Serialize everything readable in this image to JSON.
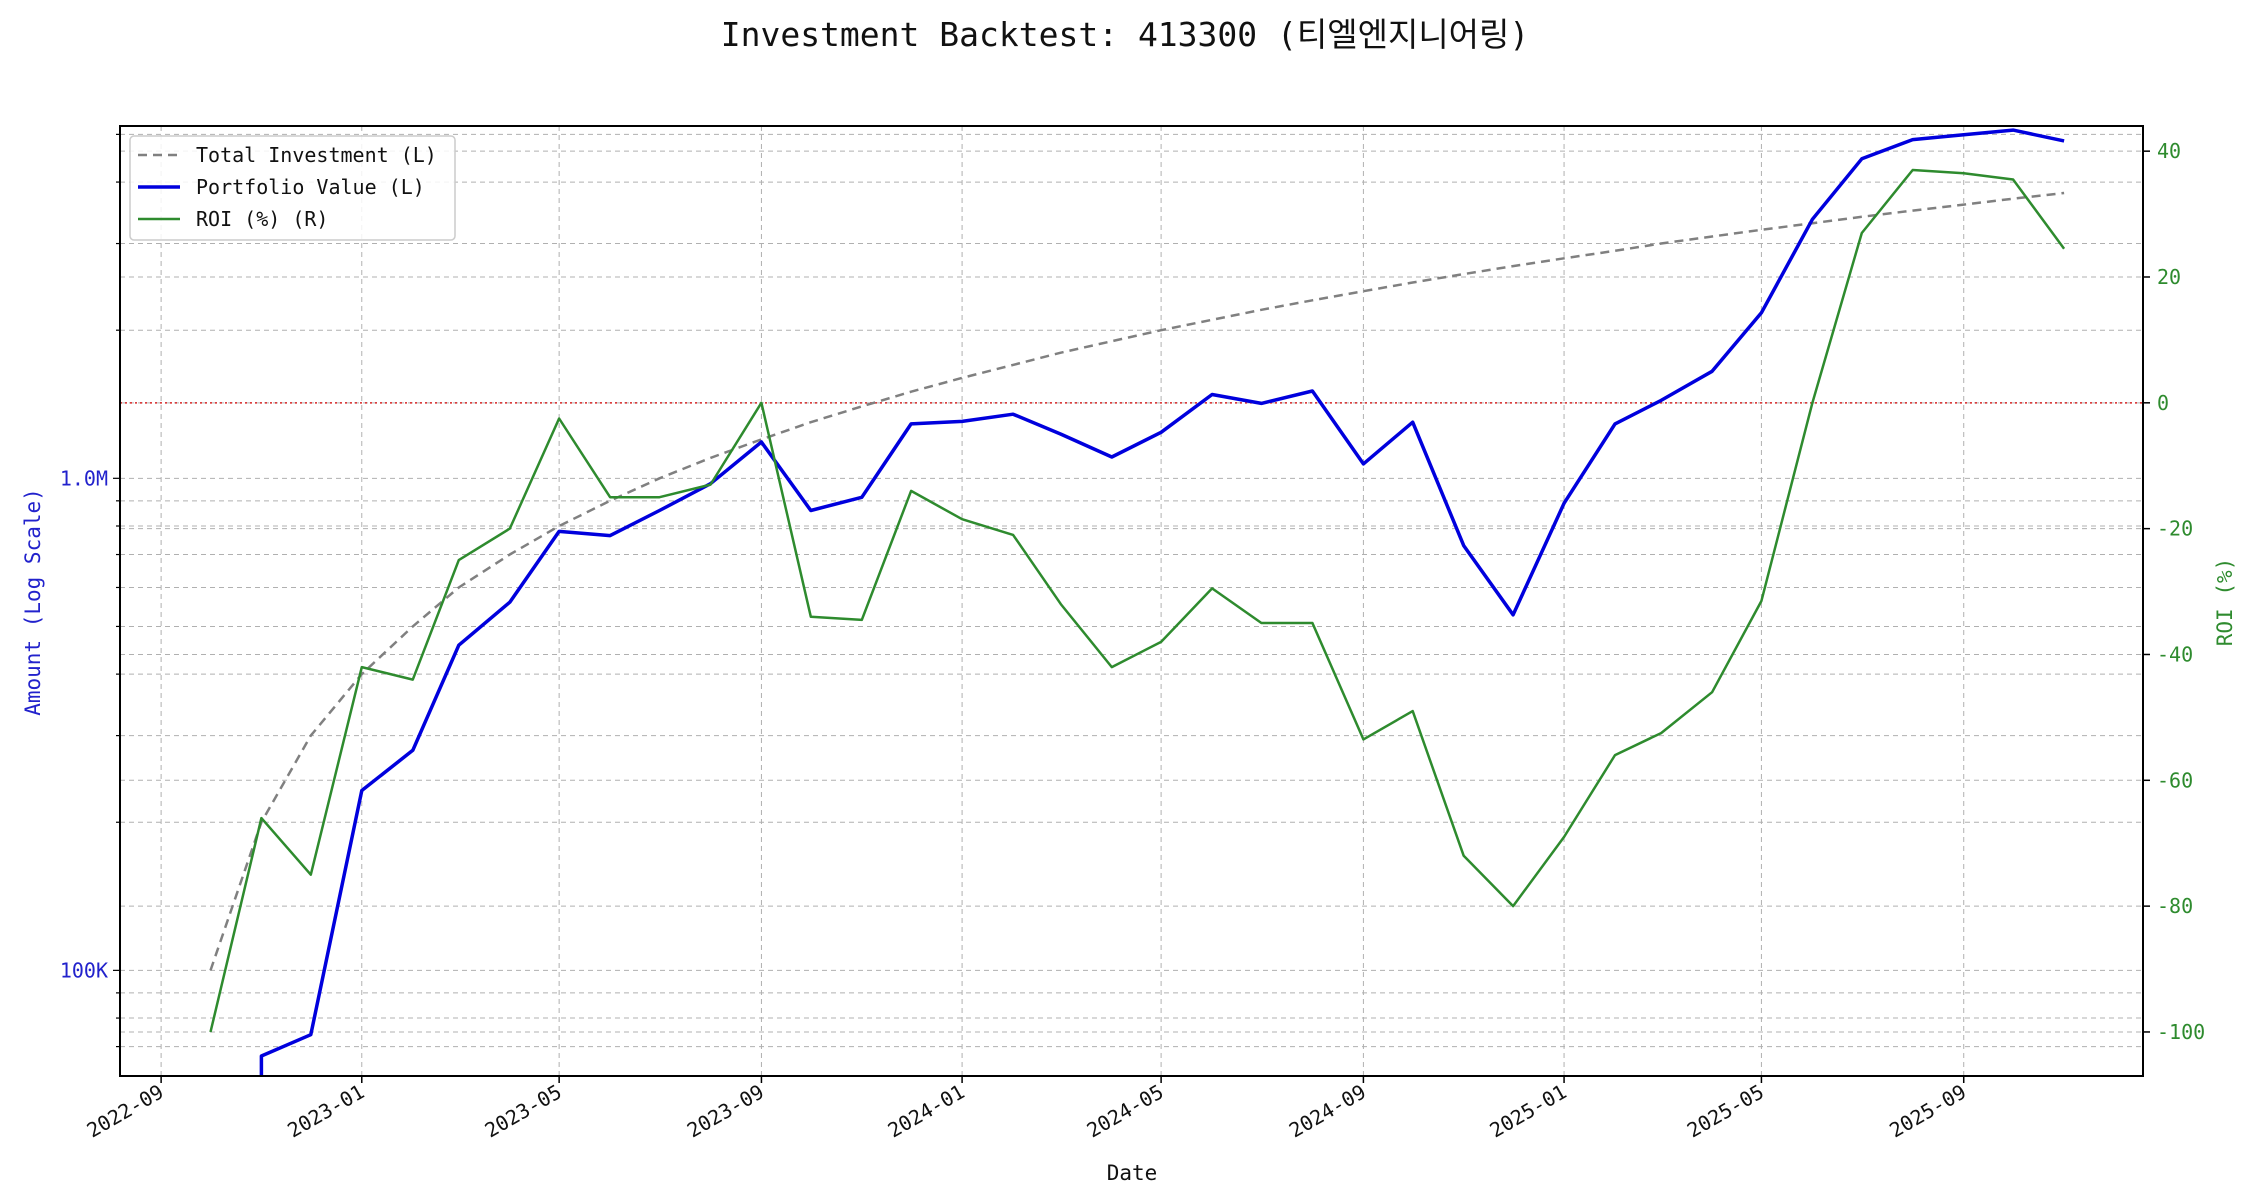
{
  "chart_data": {
    "type": "line",
    "title": "Investment Backtest: 413300 (티엘엔지니어링)",
    "xlabel": "Date",
    "ylabel_left": "Amount (Log Scale)",
    "ylabel_right": "ROI (%)",
    "yscale_left": "log",
    "ylim_left": [
      61000,
      5200000
    ],
    "ylim_right": [
      -107,
      44
    ],
    "xlim": [
      "2022-08-07",
      "2025-12-19"
    ],
    "x_ticks": [
      "2022-09",
      "2023-01",
      "2023-05",
      "2023-09",
      "2024-01",
      "2024-05",
      "2024-09",
      "2025-01",
      "2025-05",
      "2025-09"
    ],
    "y_ticks_left": [
      {
        "value": 100000,
        "label": "100K"
      },
      {
        "value": 1000000,
        "label": "1.0M"
      }
    ],
    "y_ticks_right": [
      -100,
      -80,
      -60,
      -40,
      -20,
      0,
      20,
      40
    ],
    "grid": true,
    "legend_position": "top-left",
    "reference_line": {
      "axis": "right",
      "value": 0,
      "color": "#d62728",
      "style": "dotted"
    },
    "dates": [
      "2022-10",
      "2022-11",
      "2022-12",
      "2023-01",
      "2023-02",
      "2023-03",
      "2023-04",
      "2023-05",
      "2023-06",
      "2023-07",
      "2023-08",
      "2023-09",
      "2023-10",
      "2023-11",
      "2023-12",
      "2024-01",
      "2024-02",
      "2024-03",
      "2024-04",
      "2024-05",
      "2024-06",
      "2024-07",
      "2024-08",
      "2024-09",
      "2024-10",
      "2024-11",
      "2024-12",
      "2025-01",
      "2025-02",
      "2025-03",
      "2025-04",
      "2025-05",
      "2025-06",
      "2025-07",
      "2025-08",
      "2025-09",
      "2025-10",
      "2025-11"
    ],
    "series": [
      {
        "name": "Total Investment (L)",
        "axis": "left",
        "color": "#808080",
        "style": "dashed",
        "values": [
          100000,
          200000,
          300000,
          400000,
          500000,
          600000,
          700000,
          800000,
          900000,
          1000000,
          1100000,
          1200000,
          1300000,
          1400000,
          1500000,
          1600000,
          1700000,
          1800000,
          1900000,
          2000000,
          2100000,
          2200000,
          2300000,
          2400000,
          2500000,
          2600000,
          2700000,
          2800000,
          2900000,
          3000000,
          3100000,
          3200000,
          3300000,
          3400000,
          3500000,
          3600000,
          3700000,
          3800000
        ]
      },
      {
        "name": "Portfolio Value (L)",
        "axis": "left",
        "color": "#0000dd",
        "style": "solid",
        "values": [
          null,
          67000,
          74000,
          232000,
          280000,
          458000,
          560000,
          780000,
          765000,
          860000,
          975000,
          1185000,
          860000,
          915000,
          1290000,
          1305000,
          1350000,
          1230000,
          1105000,
          1240000,
          1480000,
          1420000,
          1505000,
          1070000,
          1300000,
          730000,
          528000,
          890000,
          1290000,
          1440000,
          1650000,
          2170000,
          3360000,
          4460000,
          4880000,
          4990000,
          5100000,
          4850000
        ]
      },
      {
        "name": "ROI (%) (R)",
        "axis": "right",
        "color": "#2e8b2e",
        "style": "solid",
        "values": [
          -100,
          -66,
          -75,
          -42,
          -44,
          -25,
          -20,
          -2.5,
          -15,
          -15,
          -13,
          0,
          -34,
          -34.5,
          -14,
          -18.5,
          -21,
          -32,
          -42,
          -38,
          -29.5,
          -35,
          -35,
          -53.5,
          -49,
          -72,
          -80,
          -69,
          -56,
          -52.5,
          -46,
          -31.5,
          0,
          27,
          37,
          36.5,
          35.5,
          24.5
        ]
      }
    ]
  }
}
